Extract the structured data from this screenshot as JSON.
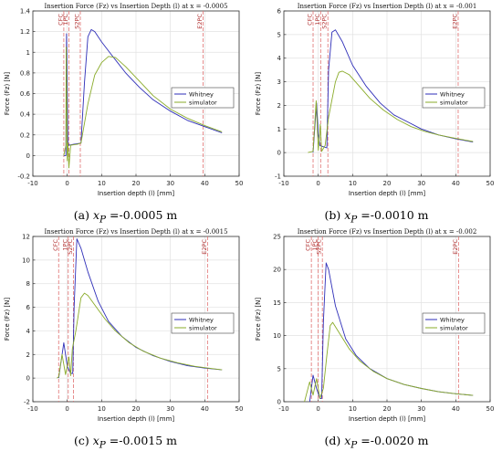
{
  "chart_data": [
    {
      "type": "line",
      "title": "Insertion Force (Fz) vs Insertion Depth (l) at x = -0.0005",
      "xlabel": "Insertion depth (l) [mm]",
      "ylabel": "Force (Fz) [N]",
      "xlim": [
        -10,
        50
      ],
      "ylim": [
        -0.2,
        1.4
      ],
      "xticks": [
        "-10",
        "0",
        "10",
        "20",
        "30",
        "40",
        "50"
      ],
      "yticks": [
        "-0.2",
        "0",
        "0.2",
        "0.4",
        "0.6",
        "0.8",
        "1",
        "1.2",
        "1.4"
      ],
      "grid": true,
      "legend": "center-right",
      "caption": {
        "label": "(a)",
        "var": "x",
        "sub": "P",
        "value": "=-0.0005 m"
      },
      "markers": [
        {
          "label": "CFC",
          "x": -1.0
        },
        {
          "label": "1PC",
          "x": 0.5
        },
        {
          "label": "S2PC",
          "x": 3.8
        },
        {
          "label": "E2PC",
          "x": 39.5
        }
      ],
      "series": [
        {
          "name": "Whitney",
          "color": "#2e2eb8",
          "points": [
            [
              -1,
              0
            ],
            [
              -0.4,
              0
            ],
            [
              -0.2,
              1.18
            ],
            [
              0.2,
              0.12
            ],
            [
              0.5,
              0.1
            ],
            [
              2,
              0.11
            ],
            [
              4,
              0.12
            ],
            [
              5,
              0.7
            ],
            [
              6,
              1.15
            ],
            [
              7,
              1.22
            ],
            [
              8,
              1.2
            ],
            [
              10,
              1.1
            ],
            [
              13,
              0.97
            ],
            [
              17,
              0.8
            ],
            [
              21,
              0.66
            ],
            [
              25,
              0.54
            ],
            [
              30,
              0.43
            ],
            [
              35,
              0.34
            ],
            [
              40,
              0.28
            ],
            [
              45,
              0.22
            ]
          ]
        },
        {
          "name": "simulator",
          "color": "#8aab2a",
          "points": [
            [
              -1,
              0
            ],
            [
              -0.4,
              0.1
            ],
            [
              -0.3,
              1.05
            ],
            [
              0,
              -0.05
            ],
            [
              0.2,
              0.12
            ],
            [
              0.5,
              -0.12
            ],
            [
              1,
              0.1
            ],
            [
              3,
              0.11
            ],
            [
              4,
              0.12
            ],
            [
              6,
              0.5
            ],
            [
              8,
              0.78
            ],
            [
              10,
              0.9
            ],
            [
              12,
              0.96
            ],
            [
              14,
              0.95
            ],
            [
              17,
              0.86
            ],
            [
              21,
              0.72
            ],
            [
              25,
              0.58
            ],
            [
              30,
              0.45
            ],
            [
              35,
              0.36
            ],
            [
              40,
              0.29
            ],
            [
              45,
              0.23
            ]
          ]
        }
      ]
    },
    {
      "type": "line",
      "title": "Insertion Force (Fz) vs Insertion Depth (l) at x = -0.001",
      "xlabel": "Insertion depth (l) [mm]",
      "ylabel": "Force (Fz) [N]",
      "xlim": [
        -10,
        50
      ],
      "ylim": [
        -1,
        6
      ],
      "xticks": [
        "-10",
        "0",
        "10",
        "20",
        "30",
        "40",
        "50"
      ],
      "yticks": [
        "-1",
        "0",
        "1",
        "2",
        "3",
        "4",
        "5",
        "6"
      ],
      "grid": true,
      "legend": "center-right",
      "caption": {
        "label": "(b)",
        "var": "x",
        "sub": "P",
        "value": "=-0.0010 m"
      },
      "markers": [
        {
          "label": "CFC",
          "x": -1.5
        },
        {
          "label": "1PC",
          "x": 0.7
        },
        {
          "label": "S2PC",
          "x": 2.8
        },
        {
          "label": "E2PC",
          "x": 40.7
        }
      ],
      "series": [
        {
          "name": "Whitney",
          "color": "#2e2eb8",
          "points": [
            [
              -1.5,
              0
            ],
            [
              -0.5,
              2.1
            ],
            [
              0,
              0.8
            ],
            [
              0.5,
              0.3
            ],
            [
              2.5,
              0.2
            ],
            [
              3,
              3.5
            ],
            [
              4,
              5.1
            ],
            [
              5,
              5.2
            ],
            [
              7,
              4.7
            ],
            [
              10,
              3.7
            ],
            [
              14,
              2.8
            ],
            [
              18,
              2.1
            ],
            [
              22,
              1.6
            ],
            [
              26,
              1.3
            ],
            [
              30,
              1.0
            ],
            [
              35,
              0.75
            ],
            [
              40,
              0.58
            ],
            [
              45,
              0.45
            ]
          ]
        },
        {
          "name": "simulator",
          "color": "#8aab2a",
          "points": [
            [
              -3,
              0
            ],
            [
              -1.5,
              0.05
            ],
            [
              -0.6,
              2.2
            ],
            [
              0,
              0.1
            ],
            [
              0.6,
              1.2
            ],
            [
              1,
              0.05
            ],
            [
              2,
              0.3
            ],
            [
              3,
              1.5
            ],
            [
              5,
              3.0
            ],
            [
              6,
              3.4
            ],
            [
              7,
              3.45
            ],
            [
              9,
              3.3
            ],
            [
              12,
              2.8
            ],
            [
              15,
              2.3
            ],
            [
              19,
              1.8
            ],
            [
              23,
              1.4
            ],
            [
              27,
              1.1
            ],
            [
              31,
              0.9
            ],
            [
              35,
              0.75
            ],
            [
              40,
              0.6
            ],
            [
              45,
              0.47
            ]
          ]
        }
      ]
    },
    {
      "type": "line",
      "title": "Insertion Force (Fz) vs Insertion Depth (l) at x = -0.0015",
      "xlabel": "Insertion depth (l) [mm]",
      "ylabel": "Force (Fz) [N]",
      "xlim": [
        -10,
        50
      ],
      "ylim": [
        -2,
        12
      ],
      "xticks": [
        "-10",
        "0",
        "10",
        "20",
        "30",
        "40",
        "50"
      ],
      "yticks": [
        "-2",
        "0",
        "2",
        "4",
        "6",
        "8",
        "10",
        "12"
      ],
      "grid": true,
      "legend": "center-right",
      "caption": {
        "label": "(c)",
        "var": "x",
        "sub": "P",
        "value": "=-0.0015 m"
      },
      "markers": [
        {
          "label": "CFC",
          "x": -2.5
        },
        {
          "label": "1PC",
          "x": 0.3
        },
        {
          "label": "S2PC",
          "x": 1.8
        },
        {
          "label": "E2PC",
          "x": 40.8
        }
      ],
      "series": [
        {
          "name": "Whitney",
          "color": "#2e2eb8",
          "points": [
            [
              -2.5,
              0
            ],
            [
              -1,
              3.0
            ],
            [
              0,
              1.0
            ],
            [
              1,
              0.4
            ],
            [
              1.6,
              0.4
            ],
            [
              2,
              6.0
            ],
            [
              2.8,
              11.8
            ],
            [
              4,
              11.0
            ],
            [
              6,
              9.0
            ],
            [
              9,
              6.5
            ],
            [
              12,
              4.8
            ],
            [
              16,
              3.5
            ],
            [
              20,
              2.6
            ],
            [
              25,
              1.9
            ],
            [
              30,
              1.4
            ],
            [
              35,
              1.05
            ],
            [
              40,
              0.85
            ],
            [
              45,
              0.7
            ]
          ]
        },
        {
          "name": "simulator",
          "color": "#8aab2a",
          "points": [
            [
              -3,
              0
            ],
            [
              -2.5,
              0.1
            ],
            [
              -1.5,
              2.0
            ],
            [
              -0.5,
              0.3
            ],
            [
              0.5,
              1.8
            ],
            [
              1,
              0.2
            ],
            [
              1.5,
              2.5
            ],
            [
              2.5,
              4.0
            ],
            [
              4,
              6.8
            ],
            [
              5,
              7.2
            ],
            [
              6,
              7.0
            ],
            [
              8,
              6.2
            ],
            [
              11,
              5.0
            ],
            [
              14,
              4.0
            ],
            [
              18,
              3.0
            ],
            [
              22,
              2.3
            ],
            [
              27,
              1.7
            ],
            [
              32,
              1.3
            ],
            [
              37,
              1.0
            ],
            [
              41,
              0.85
            ],
            [
              45,
              0.7
            ]
          ]
        }
      ]
    },
    {
      "type": "line",
      "title": "Insertion Force (Fz) vs Insertion Depth (l) at x = -0.002",
      "xlabel": "Insertion depth (l) [mm]",
      "ylabel": "Force (Fz) [N]",
      "xlim": [
        -10,
        50
      ],
      "ylim": [
        0,
        25
      ],
      "xticks": [
        "-10",
        "0",
        "10",
        "20",
        "30",
        "40",
        "50"
      ],
      "yticks": [
        "0",
        "5",
        "10",
        "15",
        "20",
        "25"
      ],
      "grid": true,
      "legend": "center-right",
      "caption": {
        "label": "(d)",
        "var": "x",
        "sub": "P",
        "value": "=-0.0020 m"
      },
      "markers": [
        {
          "label": "CFC",
          "x": -2.0
        },
        {
          "label": "1PC",
          "x": 0.0
        },
        {
          "label": "S2PC",
          "x": 1.2
        },
        {
          "label": "E2PC",
          "x": 40.8
        }
      ],
      "series": [
        {
          "name": "Whitney",
          "color": "#2e2eb8",
          "points": [
            [
              -2.5,
              0
            ],
            [
              -1.5,
              4.0
            ],
            [
              -0.5,
              2.0
            ],
            [
              0.5,
              0.5
            ],
            [
              1,
              0.5
            ],
            [
              1.5,
              12.0
            ],
            [
              2.3,
              21.0
            ],
            [
              3,
              20.0
            ],
            [
              5,
              14.5
            ],
            [
              8,
              9.5
            ],
            [
              11,
              7.0
            ],
            [
              15,
              5.0
            ],
            [
              20,
              3.5
            ],
            [
              25,
              2.6
            ],
            [
              30,
              2.0
            ],
            [
              35,
              1.5
            ],
            [
              40,
              1.2
            ],
            [
              45,
              0.95
            ]
          ]
        },
        {
          "name": "simulator",
          "color": "#8aab2a",
          "points": [
            [
              -4,
              0
            ],
            [
              -2.5,
              3.0
            ],
            [
              -1.5,
              1.0
            ],
            [
              -0.5,
              3.5
            ],
            [
              0.5,
              0.5
            ],
            [
              1.5,
              2.0
            ],
            [
              2.5,
              7.0
            ],
            [
              3.5,
              11.5
            ],
            [
              4.2,
              12.0
            ],
            [
              6,
              10.5
            ],
            [
              9,
              8.0
            ],
            [
              12,
              6.2
            ],
            [
              16,
              4.6
            ],
            [
              20,
              3.5
            ],
            [
              25,
              2.6
            ],
            [
              30,
              2.0
            ],
            [
              35,
              1.5
            ],
            [
              40,
              1.2
            ],
            [
              45,
              0.95
            ]
          ]
        }
      ]
    }
  ]
}
